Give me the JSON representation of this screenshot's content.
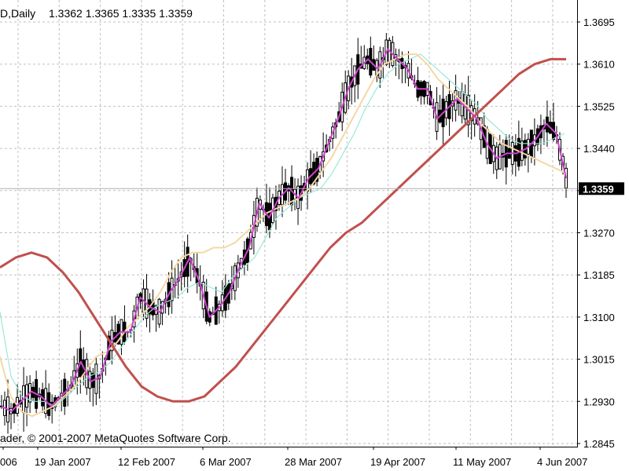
{
  "header": {
    "symbol_period": "D,Daily",
    "ohlc": "1.3362 1.3365 1.3335 1.3359"
  },
  "copyright": "ader, © 2001-2007 MetaQuotes Software Corp.",
  "current_price_label": "1.3359",
  "colors": {
    "grid": "#c0c0c0",
    "candles": "#000000",
    "ma_fast": "#cc44cc",
    "ma_mid": "#f5d7a6",
    "ma_cyan": "#9be8d8",
    "ma_slow": "#c0504d",
    "price_tag_bg": "#000000",
    "price_tag_text": "#ffffff"
  },
  "chart_data": {
    "type": "line",
    "ylim": [
      1.2845,
      1.3735
    ],
    "y_ticks": [
      "1.3695",
      "1.3610",
      "1.3525",
      "1.3440",
      "1.3355",
      "1.3270",
      "1.3185",
      "1.3100",
      "1.3015",
      "1.2930",
      "1.2845"
    ],
    "x_ticks": [
      "006",
      "19 Jan 2007",
      "12 Feb 2007",
      "6 Mar 2007",
      "28 Mar 2007",
      "19 Apr 2007",
      "11 May 2007",
      "4 Jun 2007"
    ],
    "current_price": 1.3359,
    "grid": true,
    "series": [
      {
        "key": "ma_fast",
        "style": "ma_fast",
        "points": [
          [
            0,
            1.292
          ],
          [
            1,
            1.291
          ],
          [
            2,
            1.293
          ],
          [
            3,
            1.295
          ],
          [
            4,
            1.294
          ],
          [
            5,
            1.292
          ],
          [
            6,
            1.294
          ],
          [
            7,
            1.296
          ],
          [
            8,
            1.301
          ],
          [
            9,
            1.297
          ],
          [
            10,
            1.298
          ],
          [
            11,
            1.305
          ],
          [
            12,
            1.307
          ],
          [
            13,
            1.307
          ],
          [
            14,
            1.314
          ],
          [
            15,
            1.312
          ],
          [
            16,
            1.311
          ],
          [
            17,
            1.315
          ],
          [
            18,
            1.318
          ],
          [
            19,
            1.322
          ],
          [
            20,
            1.317
          ],
          [
            21,
            1.31
          ],
          [
            22,
            1.312
          ],
          [
            23,
            1.315
          ],
          [
            24,
            1.32
          ],
          [
            25,
            1.324
          ],
          [
            26,
            1.333
          ],
          [
            27,
            1.33
          ],
          [
            28,
            1.334
          ],
          [
            29,
            1.336
          ],
          [
            30,
            1.334
          ],
          [
            31,
            1.338
          ],
          [
            32,
            1.34
          ],
          [
            33,
            1.345
          ],
          [
            34,
            1.35
          ],
          [
            35,
            1.356
          ],
          [
            36,
            1.36
          ],
          [
            37,
            1.362
          ],
          [
            38,
            1.36
          ],
          [
            39,
            1.364
          ],
          [
            40,
            1.362
          ],
          [
            41,
            1.36
          ],
          [
            42,
            1.356
          ],
          [
            43,
            1.356
          ],
          [
            44,
            1.35
          ],
          [
            45,
            1.352
          ],
          [
            46,
            1.354
          ],
          [
            47,
            1.352
          ],
          [
            48,
            1.35
          ],
          [
            49,
            1.345
          ],
          [
            50,
            1.342
          ],
          [
            51,
            1.343
          ],
          [
            52,
            1.343
          ],
          [
            53,
            1.344
          ],
          [
            54,
            1.346
          ],
          [
            55,
            1.349
          ],
          [
            56,
            1.347
          ],
          [
            57,
            1.338
          ]
        ]
      },
      {
        "key": "ma_mid",
        "style": "ma_mid",
        "points": [
          [
            0,
            1.302
          ],
          [
            1,
            1.294
          ],
          [
            2,
            1.291
          ],
          [
            3,
            1.29
          ],
          [
            4,
            1.291
          ],
          [
            5,
            1.292
          ],
          [
            6,
            1.294
          ],
          [
            7,
            1.296
          ],
          [
            8,
            1.299
          ],
          [
            9,
            1.302
          ],
          [
            10,
            1.303
          ],
          [
            11,
            1.305
          ],
          [
            12,
            1.308
          ],
          [
            13,
            1.31
          ],
          [
            14,
            1.312
          ],
          [
            15,
            1.315
          ],
          [
            16,
            1.319
          ],
          [
            17,
            1.322
          ],
          [
            18,
            1.323
          ],
          [
            19,
            1.323
          ],
          [
            20,
            1.324
          ],
          [
            21,
            1.324
          ],
          [
            22,
            1.325
          ],
          [
            23,
            1.327
          ],
          [
            24,
            1.329
          ],
          [
            25,
            1.331
          ],
          [
            26,
            1.332
          ],
          [
            27,
            1.333
          ],
          [
            28,
            1.334
          ],
          [
            29,
            1.336
          ],
          [
            30,
            1.339
          ],
          [
            31,
            1.342
          ],
          [
            32,
            1.346
          ],
          [
            33,
            1.35
          ],
          [
            34,
            1.354
          ],
          [
            35,
            1.358
          ],
          [
            36,
            1.361
          ],
          [
            37,
            1.362
          ],
          [
            38,
            1.363
          ],
          [
            39,
            1.363
          ],
          [
            40,
            1.361
          ],
          [
            41,
            1.358
          ],
          [
            42,
            1.356
          ],
          [
            43,
            1.354
          ],
          [
            44,
            1.352
          ],
          [
            45,
            1.349
          ],
          [
            46,
            1.347
          ],
          [
            47,
            1.345
          ],
          [
            48,
            1.344
          ],
          [
            49,
            1.343
          ],
          [
            50,
            1.342
          ],
          [
            51,
            1.341
          ],
          [
            52,
            1.34
          ],
          [
            53,
            1.339
          ]
        ]
      },
      {
        "key": "ma_cyan",
        "style": "ma_cyan",
        "points": [
          [
            0,
            1.311
          ],
          [
            1,
            1.298
          ],
          [
            2,
            1.294
          ],
          [
            3,
            1.293
          ],
          [
            4,
            1.293
          ],
          [
            5,
            1.292
          ],
          [
            6,
            1.294
          ],
          [
            7,
            1.296
          ],
          [
            8,
            1.298
          ],
          [
            9,
            1.299
          ],
          [
            10,
            1.301
          ],
          [
            11,
            1.304
          ],
          [
            12,
            1.307
          ],
          [
            13,
            1.31
          ],
          [
            14,
            1.312
          ],
          [
            15,
            1.313
          ],
          [
            16,
            1.314
          ],
          [
            17,
            1.316
          ],
          [
            18,
            1.317
          ],
          [
            19,
            1.316
          ],
          [
            20,
            1.315
          ],
          [
            21,
            1.318
          ],
          [
            22,
            1.32
          ],
          [
            23,
            1.322
          ],
          [
            24,
            1.326
          ],
          [
            25,
            1.33
          ],
          [
            26,
            1.332
          ],
          [
            27,
            1.334
          ],
          [
            28,
            1.335
          ],
          [
            29,
            1.336
          ],
          [
            30,
            1.339
          ],
          [
            31,
            1.343
          ],
          [
            32,
            1.347
          ],
          [
            33,
            1.352
          ],
          [
            34,
            1.356
          ],
          [
            35,
            1.359
          ],
          [
            36,
            1.361
          ],
          [
            37,
            1.362
          ],
          [
            38,
            1.363
          ],
          [
            39,
            1.361
          ],
          [
            40,
            1.359
          ],
          [
            41,
            1.357
          ],
          [
            42,
            1.355
          ],
          [
            43,
            1.353
          ],
          [
            44,
            1.35
          ],
          [
            45,
            1.348
          ],
          [
            46,
            1.346
          ],
          [
            47,
            1.345
          ],
          [
            48,
            1.345
          ],
          [
            49,
            1.345
          ],
          [
            50,
            1.346
          ],
          [
            51,
            1.347
          ]
        ]
      },
      {
        "key": "ma_slow",
        "style": "ma_slow",
        "points": [
          [
            0,
            1.32
          ],
          [
            1,
            1.322
          ],
          [
            2,
            1.323
          ],
          [
            3,
            1.322
          ],
          [
            4,
            1.319
          ],
          [
            5,
            1.315
          ],
          [
            6,
            1.31
          ],
          [
            7,
            1.305
          ],
          [
            8,
            1.3
          ],
          [
            9,
            1.296
          ],
          [
            10,
            1.294
          ],
          [
            11,
            1.293
          ],
          [
            12,
            1.293
          ],
          [
            13,
            1.294
          ],
          [
            14,
            1.297
          ],
          [
            15,
            1.3
          ],
          [
            16,
            1.304
          ],
          [
            17,
            1.308
          ],
          [
            18,
            1.312
          ],
          [
            19,
            1.316
          ],
          [
            20,
            1.32
          ],
          [
            21,
            1.324
          ],
          [
            22,
            1.327
          ],
          [
            23,
            1.329
          ],
          [
            24,
            1.332
          ],
          [
            25,
            1.335
          ],
          [
            26,
            1.338
          ],
          [
            27,
            1.341
          ],
          [
            28,
            1.344
          ],
          [
            29,
            1.347
          ],
          [
            30,
            1.35
          ],
          [
            31,
            1.353
          ],
          [
            32,
            1.356
          ],
          [
            33,
            1.359
          ],
          [
            34,
            1.361
          ],
          [
            35,
            1.362
          ],
          [
            36,
            1.362
          ]
        ]
      }
    ]
  }
}
